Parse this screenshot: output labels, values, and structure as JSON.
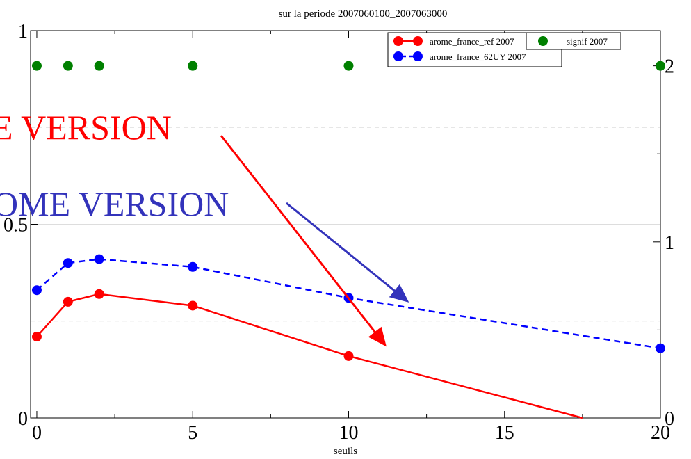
{
  "chart_data": {
    "type": "line",
    "title": "sur la periode 2007060100_2007063000",
    "xlabel": "seuils",
    "ylabel": "",
    "xlim": [
      -0.2,
      20
    ],
    "ylim": [
      0,
      1
    ],
    "y2lim": [
      0,
      2.2
    ],
    "x_ticks": [
      0,
      5,
      10,
      15,
      20
    ],
    "x_tick_labels": [
      "0",
      "5",
      "10",
      "15",
      "20"
    ],
    "y_ticks": [
      0,
      0.5,
      1
    ],
    "y_tick_labels": [
      "0",
      "0.5",
      "1"
    ],
    "y2_ticks": [
      0,
      1,
      2
    ],
    "y2_tick_labels": [
      "0",
      "1",
      "2"
    ],
    "grid": true,
    "legend_position": "top-right",
    "series": [
      {
        "name": "arome_france_ref 2007",
        "axis": "left",
        "color": "#ff0000",
        "style": "solid",
        "x": [
          0,
          1,
          2,
          5,
          10,
          17.5
        ],
        "y": [
          0.21,
          0.3,
          0.32,
          0.29,
          0.16,
          0.0
        ]
      },
      {
        "name": "arome_france_62UY 2007",
        "axis": "left",
        "color": "#0000ff",
        "style": "dashed",
        "x": [
          0,
          1,
          2,
          5,
          10,
          20
        ],
        "y": [
          0.33,
          0.4,
          0.41,
          0.39,
          0.31,
          0.18
        ]
      },
      {
        "name": "signif 2007",
        "axis": "right",
        "color": "#008000",
        "style": "markers",
        "x": [
          0,
          1,
          2,
          5,
          10,
          20
        ],
        "y": [
          2,
          2,
          2,
          2,
          2,
          2
        ]
      }
    ],
    "annotations": [
      {
        "text": "E VERSION",
        "color": "#ff0000"
      },
      {
        "text": "OME VERSION",
        "color": "#3333bb"
      }
    ]
  }
}
